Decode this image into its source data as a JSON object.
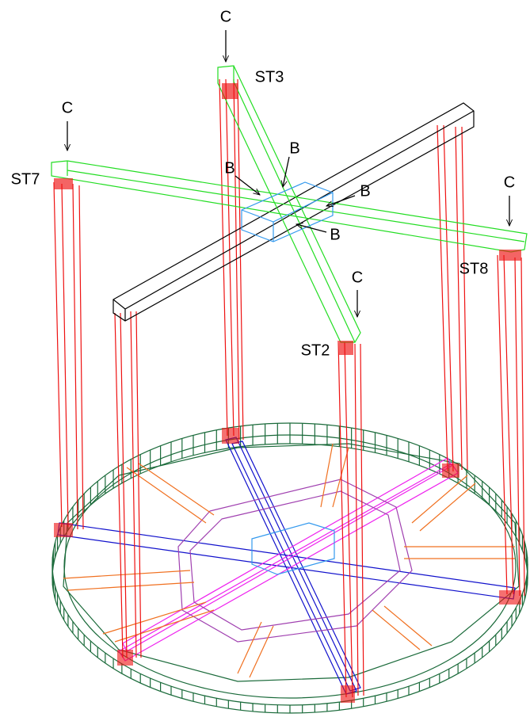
{
  "labels": [
    {
      "text": "C"
    },
    {
      "text": "ST3"
    },
    {
      "text": "C"
    },
    {
      "text": "ST7"
    },
    {
      "text": "C"
    },
    {
      "text": "ST8"
    },
    {
      "text": "C"
    },
    {
      "text": "ST2"
    },
    {
      "text": "B"
    },
    {
      "text": "B"
    },
    {
      "text": "B"
    },
    {
      "text": "B"
    }
  ]
}
